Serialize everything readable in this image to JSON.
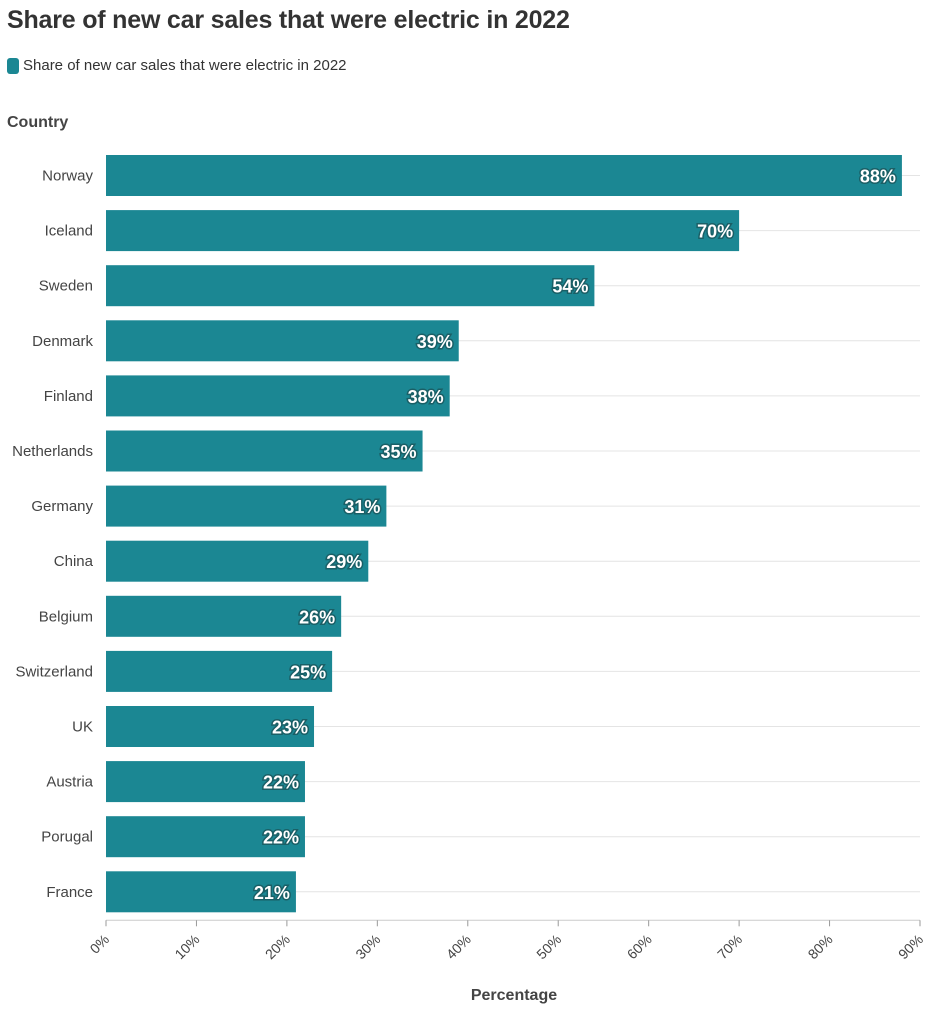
{
  "title": "Share of new car sales that were electric in 2022",
  "legend": {
    "label": "Share of new car sales that were electric in 2022",
    "color": "#1b8793"
  },
  "chart_data": {
    "type": "bar",
    "orientation": "horizontal",
    "title": "Share of new car sales that were electric in 2022",
    "xlabel": "Percentage",
    "ylabel": "Country",
    "xlim": [
      0,
      90
    ],
    "x_ticks": [
      "0%",
      "10%",
      "20%",
      "30%",
      "40%",
      "50%",
      "60%",
      "70%",
      "80%",
      "90%"
    ],
    "grid": true,
    "categories": [
      "Norway",
      "Iceland",
      "Sweden",
      "Denmark",
      "Finland",
      "Netherlands",
      "Germany",
      "China",
      "Belgium",
      "Switzerland",
      "UK",
      "Austria",
      "Porugal",
      "France"
    ],
    "series": [
      {
        "name": "Share of new car sales that were electric in 2022",
        "values": [
          88,
          70,
          54,
          39,
          38,
          35,
          31,
          29,
          26,
          25,
          23,
          22,
          22,
          21
        ],
        "labels": [
          "88%",
          "70%",
          "54%",
          "39%",
          "38%",
          "35%",
          "31%",
          "29%",
          "26%",
          "25%",
          "23%",
          "22%",
          "22%",
          "21%"
        ],
        "color": "#1b8793"
      }
    ]
  }
}
